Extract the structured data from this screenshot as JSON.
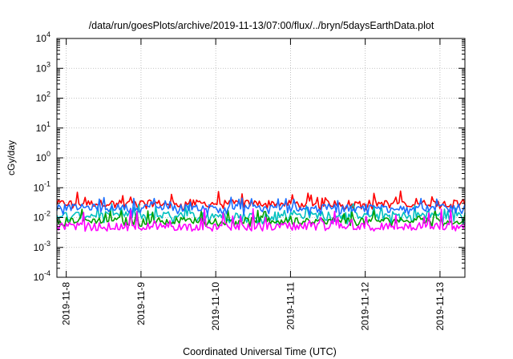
{
  "chart_data": {
    "type": "line",
    "title": "/data/run/goesPlots/archive/2019-11-13/07:00/flux/../bryn/5daysEarthData.plot",
    "xlabel": "Coordinated Universal Time (UTC)",
    "ylabel": "cGy/day",
    "yscale": "log",
    "ylim": [
      0.0001,
      10000
    ],
    "xlim": [
      "2019-11-07T21:00",
      "2019-11-13T08:00"
    ],
    "grid": true,
    "x_ticks": [
      "2019-11-8",
      "2019-11-9",
      "2019-11-10",
      "2019-11-11",
      "2019-11-12",
      "2019-11-13"
    ],
    "y_ticks": [
      {
        "base": "10",
        "exp": "4"
      },
      {
        "base": "10",
        "exp": "3"
      },
      {
        "base": "10",
        "exp": "2"
      },
      {
        "base": "10",
        "exp": "1"
      },
      {
        "base": "10",
        "exp": "0"
      },
      {
        "base": "10",
        "exp": "-1"
      },
      {
        "base": "10",
        "exp": "-2"
      },
      {
        "base": "10",
        "exp": "-3"
      },
      {
        "base": "10",
        "exp": "-4"
      }
    ],
    "series": [
      {
        "color": "#ff0000",
        "typical_value": 0.03,
        "range": [
          0.018,
          0.08
        ]
      },
      {
        "color": "#00c0c0",
        "typical_value": 0.012,
        "range": [
          0.006,
          0.03
        ]
      },
      {
        "color": "#00a000",
        "typical_value": 0.008,
        "range": [
          0.005,
          0.02
        ]
      },
      {
        "color": "#1a6fff",
        "typical_value": 0.022,
        "range": [
          0.012,
          0.05
        ]
      },
      {
        "color": "#ff00ff",
        "typical_value": 0.005,
        "range": [
          0.0035,
          0.02
        ]
      }
    ]
  }
}
